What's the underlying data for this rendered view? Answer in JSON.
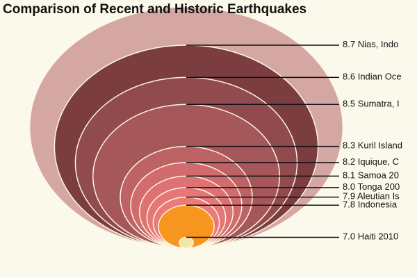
{
  "chart_data": {
    "type": "nested-ellipse",
    "title": "Comparison of Recent and Historic Earthquakes",
    "categories": [
      null,
      "Nias, Indo",
      "Indian Oce",
      "Sumatra, I",
      "Kuril Island",
      "Iquique, C",
      "Samoa 20",
      "Tonga 200",
      "Aleutian Is",
      "Indonesia",
      "Haiti 2010"
    ],
    "values": [
      8.8,
      8.7,
      8.6,
      8.5,
      8.3,
      8.2,
      8.1,
      8.0,
      7.9,
      7.8,
      7.0
    ],
    "value_labels": [
      null,
      "8.7",
      "8.6",
      "8.5",
      "8.3",
      "8.2",
      "8.1",
      "8.0",
      "7.9",
      "7.8",
      "7.0"
    ],
    "colors": [
      "#d4a7a2",
      "#7c3d41",
      "#914a4d",
      "#a6575a",
      "#bd6265",
      "#d26b6d",
      "#de7172",
      "#e67777",
      "#ea7b79",
      "#f7961e",
      "#f3e7a8"
    ]
  }
}
